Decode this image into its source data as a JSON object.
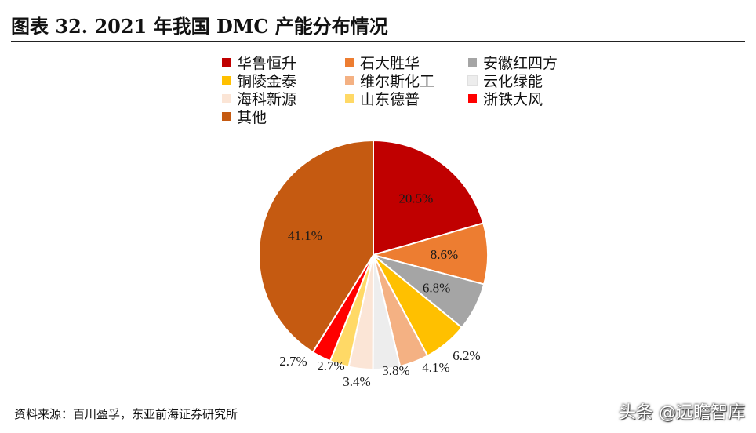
{
  "header": {
    "title": "图表 32. 2021 年我国 DMC 产能分布情况"
  },
  "footer": {
    "source": "资料来源：百川盈孚，东亚前海证券研究所",
    "watermark": "头条 @远瞻智库"
  },
  "chart_data": {
    "type": "pie",
    "legend_placement": "top",
    "slices": [
      {
        "name": "华鲁恒升",
        "value": 20.5,
        "label": "20.5%",
        "color": "#C00000"
      },
      {
        "name": "石大胜华",
        "value": 8.6,
        "label": "8.6%",
        "color": "#ED7D31"
      },
      {
        "name": "安徽红四方",
        "value": 6.8,
        "label": "6.8%",
        "color": "#A5A5A5"
      },
      {
        "name": "铜陵金泰",
        "value": 6.2,
        "label": "6.2%",
        "color": "#FFC000"
      },
      {
        "name": "维尔斯化工",
        "value": 4.1,
        "label": "4.1%",
        "color": "#F4B183"
      },
      {
        "name": "云化绿能",
        "value": 3.8,
        "label": "3.8%",
        "color": "#EDEDED"
      },
      {
        "name": "海科新源",
        "value": 3.4,
        "label": "3.4%",
        "color": "#FBE5D6"
      },
      {
        "name": "山东德普",
        "value": 2.7,
        "label": "2.7%",
        "color": "#FFD966"
      },
      {
        "name": "浙铁大风",
        "value": 2.7,
        "label": "2.7%",
        "color": "#FF0000"
      },
      {
        "name": "其他",
        "value": 41.1,
        "label": "41.1%",
        "color": "#C55A11"
      }
    ]
  }
}
